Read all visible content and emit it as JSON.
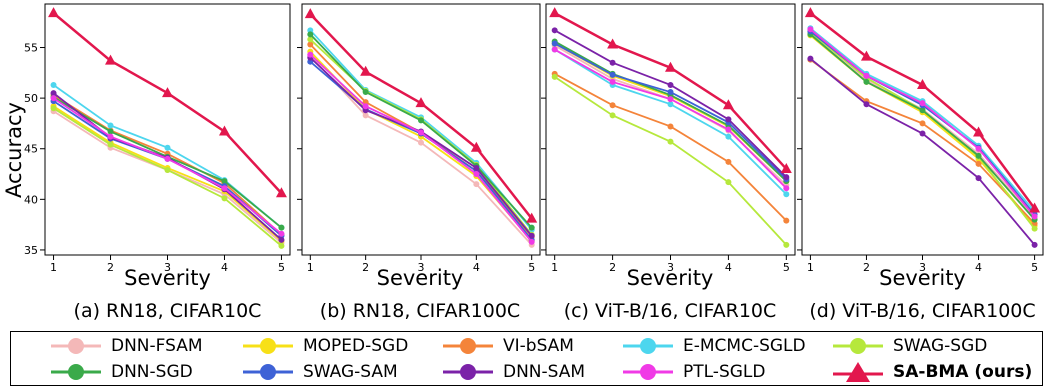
{
  "y_axis_label": "Accuracy",
  "legend": [
    {
      "name": "DNN-FSAM",
      "color": "#f4b8b8",
      "marker": "circle"
    },
    {
      "name": "MOPED-SGD",
      "color": "#f7e017",
      "marker": "circle"
    },
    {
      "name": "VI-bSAM",
      "color": "#f4843a",
      "marker": "circle"
    },
    {
      "name": "E-MCMC-SGLD",
      "color": "#4dd6ee",
      "marker": "circle"
    },
    {
      "name": "SWAG-SGD",
      "color": "#b6e83c",
      "marker": "circle"
    },
    {
      "name": "DNN-SGD",
      "color": "#3aaa4a",
      "marker": "circle"
    },
    {
      "name": "SWAG-SAM",
      "color": "#3e62d6",
      "marker": "circle"
    },
    {
      "name": "DNN-SAM",
      "color": "#7b22a8",
      "marker": "circle"
    },
    {
      "name": "PTL-SGLD",
      "color": "#f03ae6",
      "marker": "circle"
    },
    {
      "name": "SA-BMA (ours)",
      "color": "#e2174d",
      "marker": "triangle",
      "bold": true
    }
  ],
  "chart_data": [
    {
      "type": "line",
      "caption": "(a) RN18, CIFAR10C",
      "xlabel": "Severity",
      "ylabel": "Accuracy",
      "x": [
        1,
        2,
        3,
        4,
        5
      ],
      "xlim": [
        0.85,
        5.15
      ],
      "ylim": [
        34.5,
        59.3
      ],
      "yticks": [
        35,
        40,
        45,
        50,
        55
      ],
      "series": [
        {
          "name": "DNN-FSAM",
          "values": [
            48.7,
            45.1,
            42.9,
            40.5,
            35.7
          ]
        },
        {
          "name": "MOPED-SGD",
          "values": [
            49.2,
            45.6,
            43.1,
            40.8,
            35.9
          ]
        },
        {
          "name": "VI-bSAM",
          "values": [
            50.3,
            46.8,
            44.5,
            41.6,
            36.5
          ]
        },
        {
          "name": "E-MCMC-SGLD",
          "values": [
            51.3,
            47.3,
            45.1,
            41.9,
            37.2
          ]
        },
        {
          "name": "SWAG-SGD",
          "values": [
            49.0,
            45.4,
            42.9,
            40.1,
            35.4
          ]
        },
        {
          "name": "DNN-SGD",
          "values": [
            50.1,
            46.7,
            44.2,
            41.8,
            37.2
          ]
        },
        {
          "name": "SWAG-SAM",
          "values": [
            49.7,
            46.0,
            44.0,
            41.3,
            36.4
          ]
        },
        {
          "name": "DNN-SAM",
          "values": [
            50.5,
            46.1,
            44.1,
            41.0,
            36.0
          ]
        },
        {
          "name": "PTL-SGLD",
          "values": [
            50.0,
            46.2,
            44.0,
            41.1,
            36.6
          ]
        },
        {
          "name": "SA-BMA (ours)",
          "values": [
            58.4,
            53.7,
            50.5,
            46.7,
            40.6
          ]
        }
      ]
    },
    {
      "type": "line",
      "caption": "(b) RN18, CIFAR100C",
      "xlabel": "Severity",
      "ylabel": "",
      "x": [
        1,
        2,
        3,
        4,
        5
      ],
      "xlim": [
        0.85,
        5.15
      ],
      "ylim": [
        34.5,
        59.3
      ],
      "yticks": [
        35,
        40,
        45,
        50,
        55
      ],
      "series": [
        {
          "name": "DNN-FSAM",
          "values": [
            54.2,
            48.3,
            45.6,
            41.5,
            35.5
          ]
        },
        {
          "name": "MOPED-SGD",
          "values": [
            54.6,
            48.9,
            46.2,
            42.3,
            35.9
          ]
        },
        {
          "name": "VI-bSAM",
          "values": [
            55.3,
            49.6,
            46.6,
            42.8,
            36.3
          ]
        },
        {
          "name": "E-MCMC-SGLD",
          "values": [
            56.7,
            50.8,
            48.1,
            43.6,
            37.0
          ]
        },
        {
          "name": "SWAG-SGD",
          "values": [
            55.8,
            50.7,
            47.9,
            43.4,
            36.5
          ]
        },
        {
          "name": "DNN-SGD",
          "values": [
            56.3,
            50.6,
            47.8,
            43.3,
            37.2
          ]
        },
        {
          "name": "SWAG-SAM",
          "values": [
            53.6,
            48.9,
            46.5,
            42.8,
            36.0
          ]
        },
        {
          "name": "DNN-SAM",
          "values": [
            54.0,
            48.8,
            46.7,
            43.1,
            36.4
          ]
        },
        {
          "name": "PTL-SGLD",
          "values": [
            54.3,
            49.2,
            46.6,
            42.5,
            35.8
          ]
        },
        {
          "name": "SA-BMA (ours)",
          "values": [
            58.3,
            52.6,
            49.5,
            45.1,
            38.1
          ]
        }
      ]
    },
    {
      "type": "line",
      "caption": "(c) ViT-B/16, CIFAR10C",
      "xlabel": "Severity",
      "ylabel": "",
      "x": [
        1,
        2,
        3,
        4,
        5
      ],
      "xlim": [
        0.85,
        5.15
      ],
      "ylim": [
        34.5,
        59.3
      ],
      "yticks": [
        35,
        40,
        45,
        50,
        55
      ],
      "series": [
        {
          "name": "DNN-FSAM",
          "values": [
            55.2,
            51.9,
            49.9,
            46.8,
            41.4
          ]
        },
        {
          "name": "MOPED-SGD",
          "values": [
            55.4,
            52.2,
            50.2,
            47.2,
            41.8
          ]
        },
        {
          "name": "VI-bSAM",
          "values": [
            52.4,
            49.3,
            47.2,
            43.7,
            37.9
          ]
        },
        {
          "name": "E-MCMC-SGLD",
          "values": [
            54.8,
            51.3,
            49.4,
            46.2,
            40.5
          ]
        },
        {
          "name": "SWAG-SGD",
          "values": [
            52.1,
            48.3,
            45.7,
            41.7,
            35.5
          ]
        },
        {
          "name": "DNN-SGD",
          "values": [
            55.6,
            52.4,
            50.3,
            47.3,
            41.8
          ]
        },
        {
          "name": "SWAG-SAM",
          "values": [
            55.4,
            52.3,
            50.6,
            47.6,
            42.0
          ]
        },
        {
          "name": "DNN-SAM",
          "values": [
            56.7,
            53.5,
            51.3,
            47.9,
            42.2
          ]
        },
        {
          "name": "PTL-SGLD",
          "values": [
            54.8,
            51.6,
            49.9,
            46.9,
            41.1
          ]
        },
        {
          "name": "SA-BMA (ours)",
          "values": [
            58.4,
            55.3,
            53.0,
            49.3,
            43.0
          ]
        }
      ]
    },
    {
      "type": "line",
      "caption": "(d) ViT-B/16, CIFAR100C",
      "xlabel": "Severity",
      "ylabel": "",
      "x": [
        1,
        2,
        3,
        4,
        5
      ],
      "xlim": [
        0.85,
        5.15
      ],
      "ylim": [
        34.5,
        59.3
      ],
      "yticks": [
        35,
        40,
        45,
        50,
        55
      ],
      "series": [
        {
          "name": "DNN-FSAM",
          "values": [
            56.4,
            51.8,
            48.9,
            44.5,
            38.2
          ]
        },
        {
          "name": "MOPED-SGD",
          "values": [
            56.2,
            51.6,
            48.6,
            44.0,
            37.4
          ]
        },
        {
          "name": "VI-bSAM",
          "values": [
            53.8,
            49.7,
            47.5,
            43.5,
            37.6
          ]
        },
        {
          "name": "E-MCMC-SGLD",
          "values": [
            56.9,
            52.4,
            49.7,
            45.3,
            38.8
          ]
        },
        {
          "name": "SWAG-SGD",
          "values": [
            56.5,
            52.0,
            48.8,
            44.2,
            37.1
          ]
        },
        {
          "name": "DNN-SGD",
          "values": [
            56.3,
            51.6,
            48.8,
            44.3,
            38.0
          ]
        },
        {
          "name": "SWAG-SAM",
          "values": [
            56.6,
            52.2,
            49.3,
            45.1,
            38.5
          ]
        },
        {
          "name": "DNN-SAM",
          "values": [
            53.9,
            49.4,
            46.5,
            42.1,
            35.5
          ]
        },
        {
          "name": "PTL-SGLD",
          "values": [
            56.8,
            52.2,
            49.5,
            45.0,
            38.3
          ]
        },
        {
          "name": "SA-BMA (ours)",
          "values": [
            58.4,
            54.1,
            51.3,
            46.6,
            39.1
          ]
        }
      ]
    }
  ]
}
